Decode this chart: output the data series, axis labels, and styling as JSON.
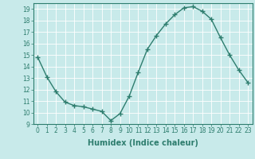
{
  "x": [
    0,
    1,
    2,
    3,
    4,
    5,
    6,
    7,
    8,
    9,
    10,
    11,
    12,
    13,
    14,
    15,
    16,
    17,
    18,
    19,
    20,
    21,
    22,
    23
  ],
  "y": [
    14.8,
    13.1,
    11.8,
    10.9,
    10.6,
    10.5,
    10.3,
    10.1,
    9.3,
    9.9,
    11.4,
    13.5,
    15.5,
    16.7,
    17.7,
    18.5,
    19.1,
    19.2,
    18.8,
    18.1,
    16.5,
    15.0,
    13.7,
    12.6
  ],
  "line_color": "#2e7d6e",
  "marker": "+",
  "marker_size": 4,
  "bg_color": "#c8eaea",
  "grid_color": "#ffffff",
  "xlabel": "Humidex (Indice chaleur)",
  "ylim": [
    9,
    19.5
  ],
  "xlim": [
    -0.5,
    23.5
  ],
  "yticks": [
    9,
    10,
    11,
    12,
    13,
    14,
    15,
    16,
    17,
    18,
    19
  ],
  "xticks": [
    0,
    1,
    2,
    3,
    4,
    5,
    6,
    7,
    8,
    9,
    10,
    11,
    12,
    13,
    14,
    15,
    16,
    17,
    18,
    19,
    20,
    21,
    22,
    23
  ],
  "tick_label_fontsize": 5.5,
  "xlabel_fontsize": 7.0,
  "line_width": 1.0,
  "marker_color": "#2e7d6e"
}
